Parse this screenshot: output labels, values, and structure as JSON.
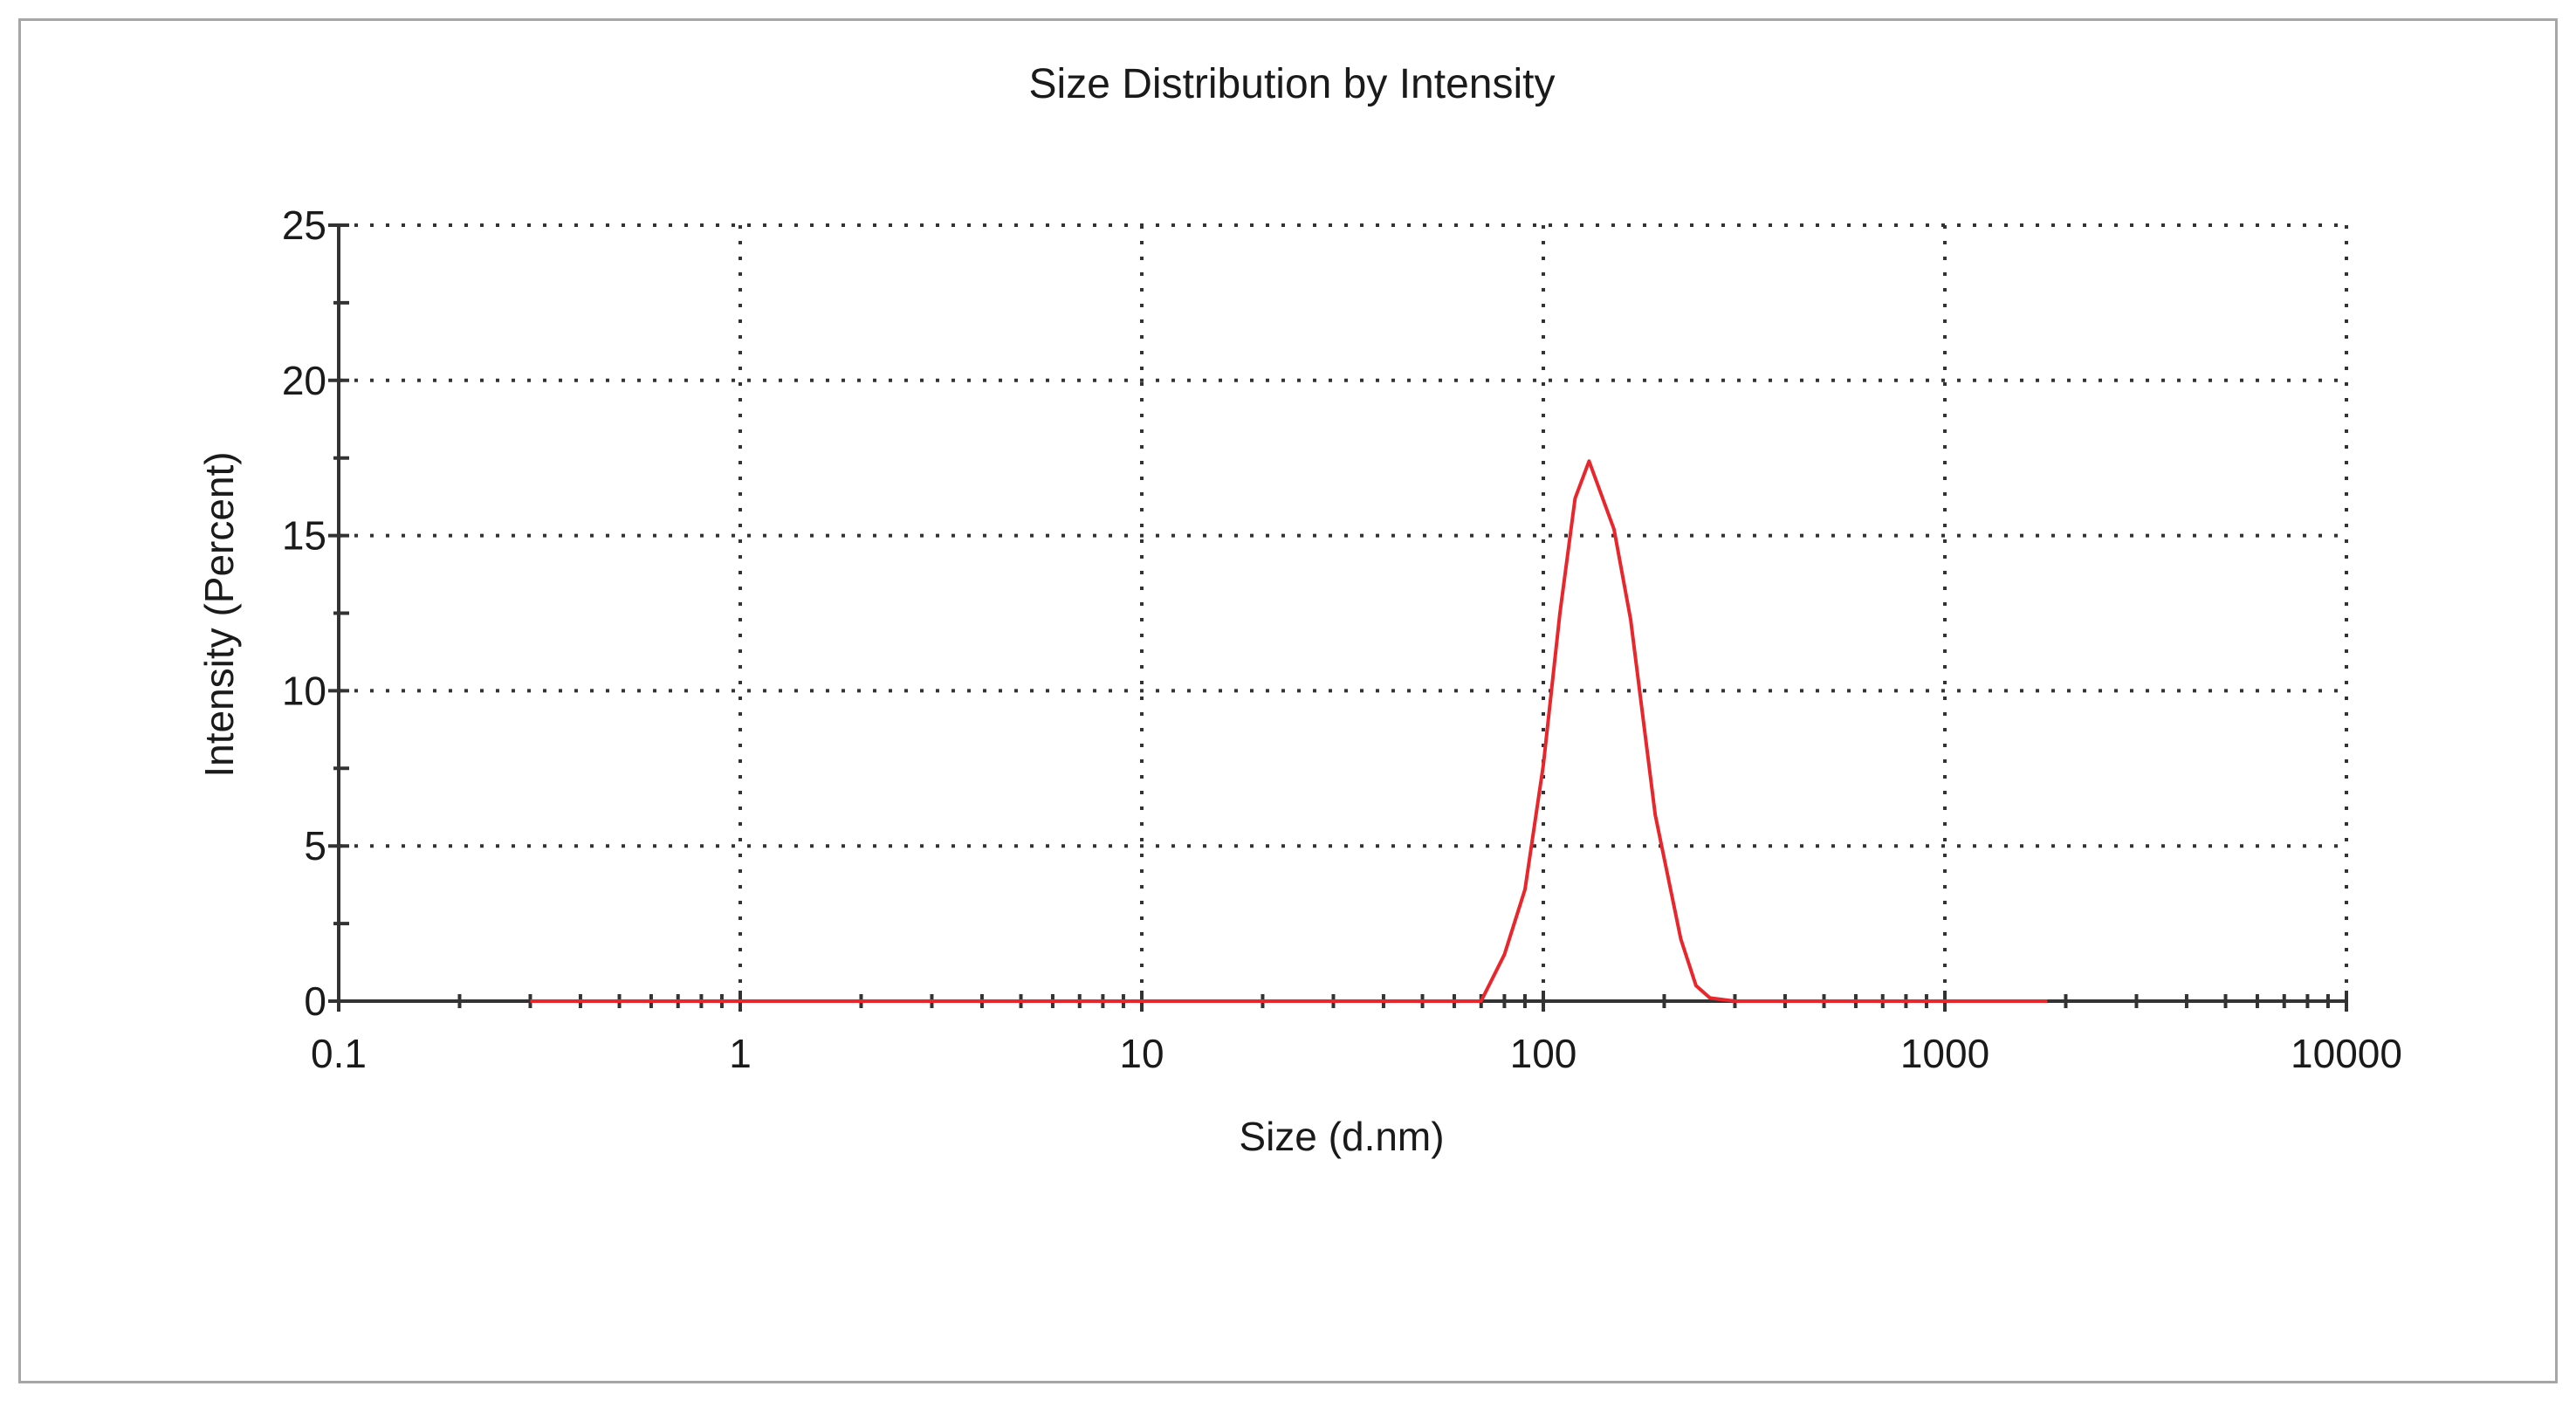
{
  "chart_data": {
    "type": "line",
    "title": "Size Distribution by Intensity",
    "xlabel": "Size (d.nm)",
    "ylabel": "Intensity (Percent)",
    "x_scale": "log",
    "xlim": [
      0.1,
      10000
    ],
    "ylim": [
      0,
      25
    ],
    "x_ticks": [
      0.1,
      1,
      10,
      100,
      1000,
      10000
    ],
    "x_tick_labels": [
      "0.1",
      "1",
      "10",
      "100",
      "1000",
      "10000"
    ],
    "y_ticks": [
      0,
      5,
      10,
      15,
      20,
      25
    ],
    "y_tick_labels": [
      "0",
      "5",
      "10",
      "15",
      "20",
      "25"
    ],
    "grid": true,
    "series": [
      {
        "color": "#e8262c",
        "x": [
          0.3,
          1,
          10,
          50,
          70,
          80,
          90,
          100,
          110,
          120,
          130,
          150,
          165,
          190,
          220,
          240,
          260,
          300,
          1000,
          1800
        ],
        "y": [
          0,
          0,
          0,
          0,
          0,
          1.5,
          3.6,
          7.6,
          12.5,
          16.2,
          17.4,
          15.2,
          12.3,
          6.0,
          2.0,
          0.5,
          0.1,
          0,
          0,
          0
        ]
      }
    ]
  }
}
